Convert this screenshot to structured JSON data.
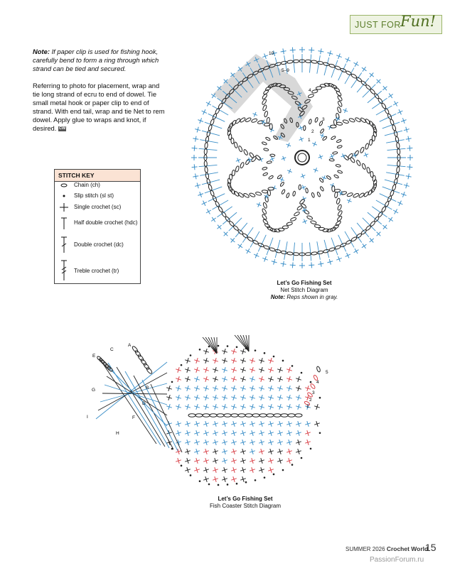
{
  "header": {
    "badge_text": "JUST FOR",
    "badge_script": "Fun!"
  },
  "note": {
    "label": "Note:",
    "text": "If paper clip is used for fishing hook, carefully bend to form a ring through which strand can be tied and secured."
  },
  "instructions": {
    "text": "Referring to photo for placement, wrap and tie long strand of ecru to end of dowel. Tie small metal hook or paper clip to end of strand. With end tail, wrap and tie Net to rem dowel. Apply glue to wraps and knot, if desired.",
    "icon": "CW"
  },
  "stitch_key": {
    "title": "STITCH KEY",
    "items": [
      "Chain (ch)",
      "Slip stitch (sl st)",
      "Single crochet (sc)",
      "Half double crochet (hdc)",
      "Double crochet (dc)",
      "Treble crochet (tr)"
    ]
  },
  "net_diagram": {
    "round_labels": [
      "10",
      "5–9",
      "4",
      "3",
      "2",
      "1"
    ],
    "caption": {
      "title": "Let’s Go Fishing Set",
      "subtitle": "Net Stitch Diagram",
      "note_label": "Note:",
      "note_text": "Reps shown in gray."
    }
  },
  "fish_diagram": {
    "letter_labels": [
      "A",
      "B",
      "C",
      "D",
      "E",
      "F",
      "G",
      "H",
      "I"
    ],
    "row_labels": [
      "5",
      "4",
      "3",
      "2",
      "1"
    ],
    "caption": {
      "title": "Let’s Go Fishing Set",
      "subtitle": "Fish Coaster Stitch Diagram"
    }
  },
  "footer": {
    "issue": "SUMMER 2026",
    "magazine": "Crochet World",
    "page": "15",
    "watermark": "PassionForum.ru"
  }
}
